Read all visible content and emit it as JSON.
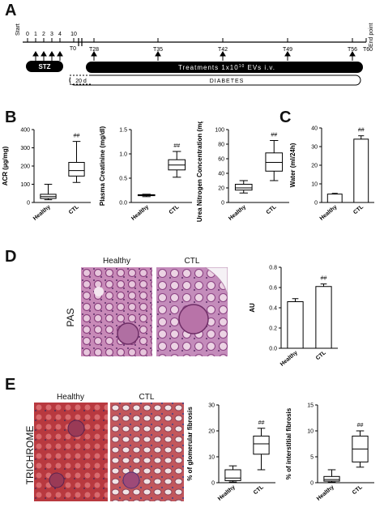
{
  "panels": {
    "a": "A",
    "b": "B",
    "c": "C",
    "d": "D",
    "e": "E"
  },
  "timeline": {
    "start": "Start",
    "end": "End point",
    "ticks": [
      "0",
      "1",
      "2",
      "3",
      "4",
      "10"
    ],
    "t0": "T0",
    "weeks": [
      "T28",
      "T35",
      "T42",
      "T49",
      "T56",
      "T60"
    ],
    "stz": "STZ",
    "treatment_prefix": "Treatments 1x10",
    "treatment_exp": "10",
    "treatment_suffix": " EVs i.v.",
    "diabetes_days": "20 d",
    "diabetes": "DIABETES"
  },
  "images": {
    "d_healthy": "Healthy",
    "d_ctl": "CTL",
    "d_side": "PAS",
    "e_healthy": "Healthy",
    "e_ctl": "CTL",
    "e_side": "TRICHROME"
  },
  "chart_data": [
    {
      "panel": "B",
      "type": "box",
      "ylabel": "ACR (µg/mg)",
      "categories": [
        "Healthy",
        "CTL"
      ],
      "ylim": [
        0,
        400
      ],
      "yticks": [
        "0",
        "100",
        "200",
        "300",
        "400"
      ],
      "boxes": [
        {
          "min": 15,
          "q1": 22,
          "median": 32,
          "q3": 45,
          "max": 100
        },
        {
          "min": 110,
          "q1": 145,
          "median": 175,
          "q3": 220,
          "max": 335
        }
      ],
      "annotations": [
        "",
        "##"
      ]
    },
    {
      "panel": "B",
      "type": "box",
      "ylabel": "Plasma Creatinine (mg/dl)",
      "categories": [
        "Healthy",
        "CTL"
      ],
      "ylim": [
        0,
        1.5
      ],
      "yticks": [
        "0.0",
        "0.5",
        "1.0",
        "1.5"
      ],
      "boxes": [
        {
          "min": 0.12,
          "q1": 0.14,
          "median": 0.15,
          "q3": 0.16,
          "max": 0.17
        },
        {
          "min": 0.52,
          "q1": 0.67,
          "median": 0.77,
          "q3": 0.88,
          "max": 1.05
        }
      ],
      "annotations": [
        "",
        "##"
      ]
    },
    {
      "panel": "B",
      "type": "box",
      "ylabel": "Urea Nitrogen Concentration (mg/dl)",
      "categories": [
        "Healthy",
        "CTL"
      ],
      "ylim": [
        0,
        100
      ],
      "yticks": [
        "0",
        "20",
        "40",
        "60",
        "80",
        "100"
      ],
      "boxes": [
        {
          "min": 13,
          "q1": 17,
          "median": 20,
          "q3": 25,
          "max": 30
        },
        {
          "min": 30,
          "q1": 43,
          "median": 55,
          "q3": 68,
          "max": 85
        }
      ],
      "annotations": [
        "",
        "##"
      ]
    },
    {
      "panel": "C",
      "type": "bar",
      "ylabel": "Water (ml/24h)",
      "categories": [
        "Healthy",
        "CTL"
      ],
      "ylim": [
        0,
        40
      ],
      "yticks": [
        "0",
        "10",
        "20",
        "30",
        "40"
      ],
      "values": [
        4.5,
        34
      ],
      "errors": [
        0.4,
        1.8
      ],
      "annotations": [
        "",
        "##"
      ]
    },
    {
      "panel": "D",
      "type": "bar",
      "ylabel": "AU",
      "categories": [
        "Healthy",
        "CTL"
      ],
      "ylim": [
        0,
        0.8
      ],
      "yticks": [
        "0.0",
        "0.2",
        "0.4",
        "0.6",
        "0.8"
      ],
      "values": [
        0.46,
        0.61
      ],
      "errors": [
        0.03,
        0.025
      ],
      "annotations": [
        "",
        "##"
      ]
    },
    {
      "panel": "E",
      "type": "box",
      "ylabel": "% of glomerular fibrosis",
      "categories": [
        "Healthy",
        "CTL"
      ],
      "ylim": [
        0,
        30
      ],
      "yticks": [
        "0",
        "10",
        "20",
        "30"
      ],
      "boxes": [
        {
          "min": 0.3,
          "q1": 0.8,
          "median": 1.8,
          "q3": 5,
          "max": 6.5
        },
        {
          "min": 5,
          "q1": 11,
          "median": 15,
          "q3": 18,
          "max": 21
        }
      ],
      "annotations": [
        "",
        "##"
      ]
    },
    {
      "panel": "E",
      "type": "box",
      "ylabel": "% of interstitial fibrosis",
      "categories": [
        "Healthy",
        "CTL"
      ],
      "ylim": [
        0,
        15
      ],
      "yticks": [
        "0",
        "5",
        "10",
        "15"
      ],
      "boxes": [
        {
          "min": 0.1,
          "q1": 0.3,
          "median": 0.6,
          "q3": 1.2,
          "max": 2.5
        },
        {
          "min": 3,
          "q1": 4,
          "median": 6.5,
          "q3": 9,
          "max": 10
        }
      ],
      "annotations": [
        "",
        "##"
      ]
    }
  ]
}
